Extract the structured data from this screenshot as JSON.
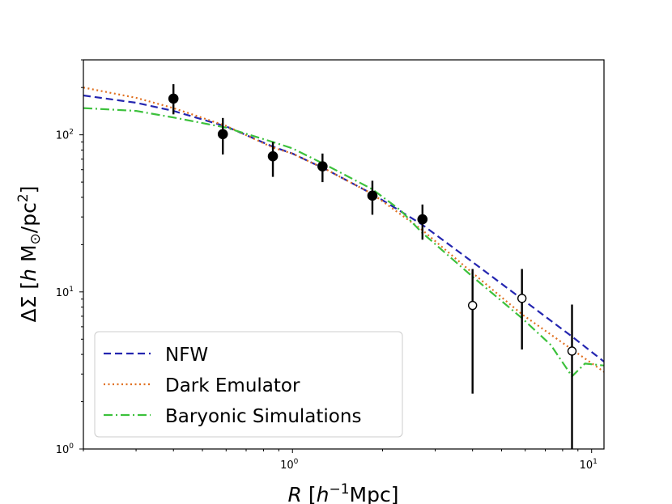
{
  "chart_data": {
    "type": "scatter",
    "xscale": "log",
    "yscale": "log",
    "xlim": [
      0.2,
      11
    ],
    "ylim": [
      1,
      300
    ],
    "xticks": [
      {
        "value": 1,
        "label": "10",
        "exp": "0"
      },
      {
        "value": 10,
        "label": "10",
        "exp": "1"
      }
    ],
    "yticks": [
      {
        "value": 1,
        "label": "10",
        "exp": "0"
      },
      {
        "value": 10,
        "label": "10",
        "exp": "1"
      },
      {
        "value": 100,
        "label": "10",
        "exp": "2"
      }
    ],
    "xlabel": {
      "sym": "R",
      "open": " [",
      "h": "h",
      "sup": "−1",
      "rest": "Mpc]"
    },
    "ylabel": {
      "delta": "ΔΣ [",
      "h": "h",
      "rest": " M",
      "sun": "⊙",
      "rest2": "/pc",
      "sup": "2",
      "close": "]"
    },
    "legend_position": "lower-left",
    "grid": false,
    "points": [
      {
        "x": 0.4,
        "y": 170,
        "ylo": 135,
        "yhi": 210,
        "filled": true
      },
      {
        "x": 0.585,
        "y": 101,
        "ylo": 75,
        "yhi": 128,
        "filled": true
      },
      {
        "x": 0.86,
        "y": 73,
        "ylo": 54,
        "yhi": 90,
        "filled": true
      },
      {
        "x": 1.26,
        "y": 63,
        "ylo": 50,
        "yhi": 76,
        "filled": true
      },
      {
        "x": 1.85,
        "y": 41,
        "ylo": 31,
        "yhi": 51,
        "filled": true
      },
      {
        "x": 2.72,
        "y": 29,
        "ylo": 21.5,
        "yhi": 36,
        "filled": true
      },
      {
        "x": 4.0,
        "y": 8.2,
        "ylo": 2.25,
        "yhi": 14,
        "filled": false
      },
      {
        "x": 5.85,
        "y": 9.1,
        "ylo": 4.3,
        "yhi": 14,
        "filled": false
      },
      {
        "x": 8.6,
        "y": 4.2,
        "ylo": 0.5,
        "yhi": 8.3,
        "filled": false
      }
    ],
    "series": [
      {
        "name": "NFW",
        "color": "#2426b0",
        "dash": "9,5",
        "x": [
          0.2,
          0.3,
          0.4,
          0.6,
          0.86,
          1.0,
          1.3,
          1.85,
          2.7,
          4.0,
          5.85,
          8.6,
          11
        ],
        "y": [
          178,
          160,
          142,
          113,
          84,
          76,
          60,
          42,
          27,
          15.5,
          9.0,
          5.2,
          3.6
        ]
      },
      {
        "name": "Dark Emulator",
        "color": "#e07020",
        "dash": "2,3.5",
        "x": [
          0.2,
          0.3,
          0.4,
          0.6,
          0.86,
          1.0,
          1.3,
          1.85,
          2.7,
          4.0,
          5.85,
          8.6,
          11
        ],
        "y": [
          200,
          172,
          148,
          114,
          83,
          76,
          60,
          42,
          25,
          13.2,
          7.2,
          4.3,
          3.1
        ]
      },
      {
        "name": "Baryonic Simulations",
        "color": "#3cc13c",
        "dash": "11,4,2,4",
        "x": [
          0.2,
          0.3,
          0.4,
          0.6,
          0.86,
          1.0,
          1.3,
          1.85,
          2.3,
          2.7,
          4.0,
          5.85,
          7.3,
          8.6,
          9.5,
          11
        ],
        "y": [
          148,
          142,
          129,
          111,
          90,
          82,
          64,
          45,
          33,
          24,
          12.5,
          6.8,
          4.6,
          2.9,
          3.5,
          3.4
        ]
      }
    ]
  }
}
